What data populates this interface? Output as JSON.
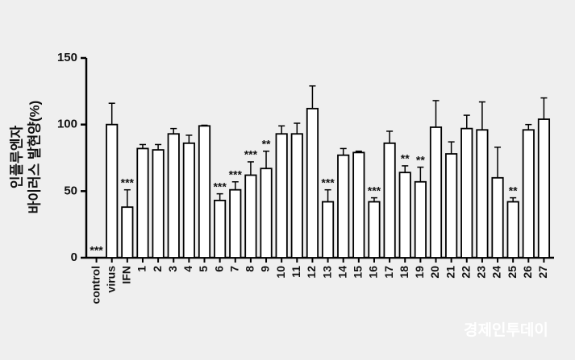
{
  "chart_data": {
    "type": "bar",
    "y_label": [
      "인플루엔자",
      "바이러스 발현양(%)"
    ],
    "categories": [
      "control",
      "virus",
      "IFN",
      "1",
      "2",
      "3",
      "4",
      "5",
      "6",
      "7",
      "8",
      "9",
      "10",
      "11",
      "12",
      "13",
      "14",
      "15",
      "16",
      "17",
      "18",
      "19",
      "20",
      "21",
      "22",
      "23",
      "24",
      "25",
      "26",
      "27"
    ],
    "values": [
      0,
      100,
      38,
      82,
      81,
      93,
      86,
      99,
      43,
      51,
      62,
      67,
      93,
      93,
      112,
      42,
      77,
      79,
      42,
      86,
      64,
      57,
      98,
      78,
      97,
      96,
      60,
      42,
      96,
      104
    ],
    "errors": [
      0,
      16,
      13,
      3,
      4,
      4,
      6,
      0.5,
      5,
      6,
      10,
      13,
      6,
      8,
      17,
      9,
      5,
      1,
      3,
      9,
      5,
      11,
      20,
      9,
      10,
      21,
      23,
      3,
      4,
      16
    ],
    "significance": [
      "***",
      null,
      "***",
      null,
      null,
      null,
      null,
      null,
      "***",
      "***",
      "***",
      "**",
      null,
      null,
      null,
      "***",
      null,
      null,
      "***",
      null,
      "**",
      "**",
      null,
      null,
      null,
      null,
      null,
      "**",
      null,
      null
    ],
    "color": "#ffffff",
    "edge_color": "#000000",
    "ylim": [
      0,
      150
    ],
    "yticks": [
      0,
      50,
      100,
      150
    ],
    "watermark": "경제인투데이"
  }
}
